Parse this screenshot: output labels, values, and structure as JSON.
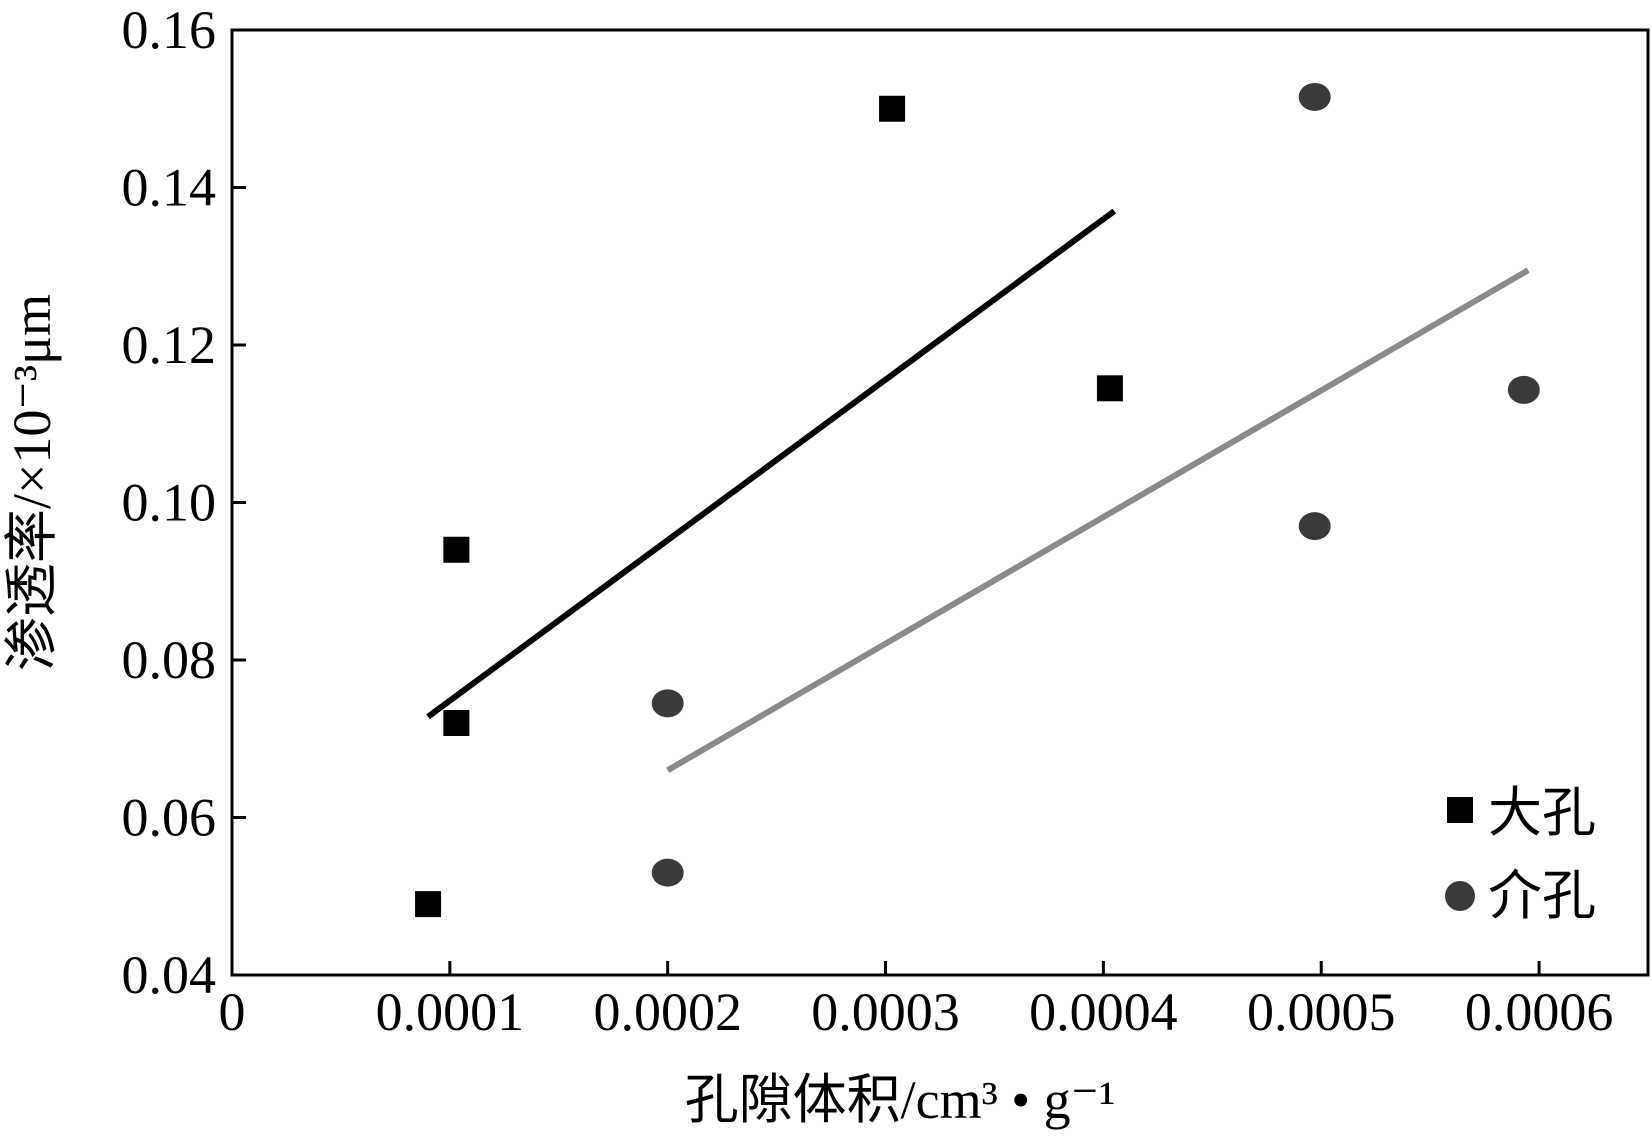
{
  "chart_data": {
    "type": "scatter",
    "title": "",
    "xlabel": "孔隙体积/cm³ • g⁻¹",
    "ylabel": "渗透率/×10⁻³μm",
    "xlim": [
      0,
      0.00065
    ],
    "ylim": [
      0.04,
      0.16
    ],
    "x_ticks": [
      0,
      0.0001,
      0.0002,
      0.0003,
      0.0004,
      0.0005,
      0.0006
    ],
    "x_tick_labels": [
      "0",
      "0.0001",
      "0.0002",
      "0.0003",
      "0.0004",
      "0.0005",
      "0.0006"
    ],
    "y_ticks": [
      0.04,
      0.06,
      0.08,
      0.1,
      0.12,
      0.14,
      0.16
    ],
    "y_tick_labels": [
      "0.04",
      "0.06",
      "0.08",
      "0.10",
      "0.12",
      "0.14",
      "0.16"
    ],
    "grid": false,
    "legend_position": "bottom-right",
    "series": [
      {
        "name": "大孔",
        "marker": "square",
        "color": "#000000",
        "points": [
          {
            "x": 9e-05,
            "y": 0.049
          },
          {
            "x": 0.000103,
            "y": 0.072
          },
          {
            "x": 0.000103,
            "y": 0.094
          },
          {
            "x": 0.000303,
            "y": 0.15
          },
          {
            "x": 0.000403,
            "y": 0.1145
          }
        ],
        "trendline": {
          "color": "#000000",
          "x": [
            9e-05,
            0.000405
          ],
          "y": [
            0.0728,
            0.137
          ]
        }
      },
      {
        "name": "介孔",
        "marker": "circle",
        "color": "#3a3a3a",
        "points": [
          {
            "x": 0.0002,
            "y": 0.053
          },
          {
            "x": 0.0002,
            "y": 0.0745
          },
          {
            "x": 0.000497,
            "y": 0.097
          },
          {
            "x": 0.000497,
            "y": 0.1515
          },
          {
            "x": 0.000593,
            "y": 0.1143
          }
        ],
        "trendline": {
          "color": "#8a8a8a",
          "x": [
            0.0002,
            0.000595
          ],
          "y": [
            0.066,
            0.1295
          ]
        }
      }
    ]
  }
}
